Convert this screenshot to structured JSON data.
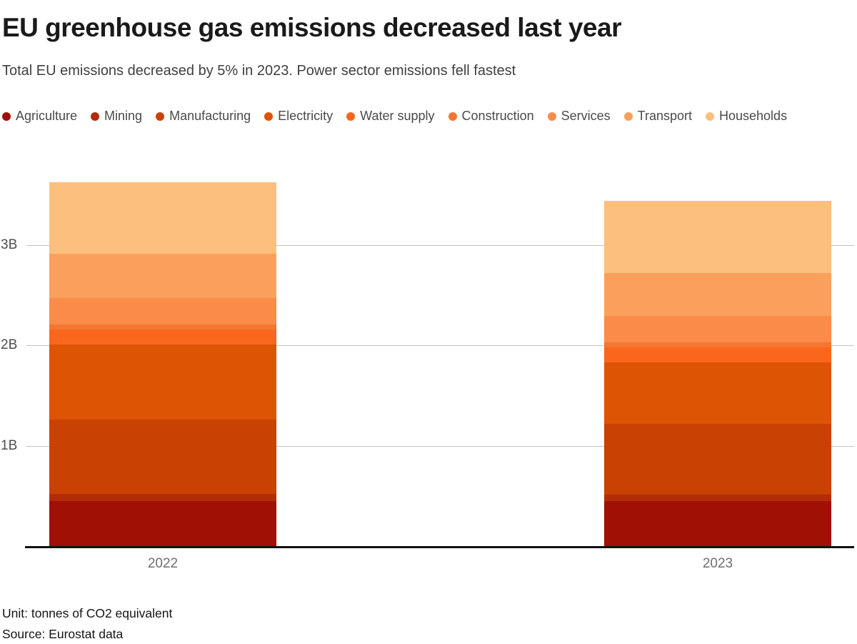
{
  "header": {
    "title": "EU greenhouse gas emissions decreased last year",
    "subtitle": "Total EU emissions decreased by 5% in 2023. Power sector emissions fell fastest"
  },
  "chart_data": {
    "type": "bar",
    "stacked": true,
    "unit": "billion tonnes of CO2 equivalent",
    "categories": [
      "2022",
      "2023"
    ],
    "series": [
      {
        "name": "Agriculture",
        "color": "#a01005",
        "values": [
          0.45,
          0.45
        ]
      },
      {
        "name": "Mining",
        "color": "#b32d08",
        "values": [
          0.07,
          0.06
        ]
      },
      {
        "name": "Manufacturing",
        "color": "#c94103",
        "values": [
          0.74,
          0.71
        ]
      },
      {
        "name": "Electricity",
        "color": "#dd5405",
        "values": [
          0.75,
          0.61
        ]
      },
      {
        "name": "Water supply",
        "color": "#fa671c",
        "values": [
          0.15,
          0.15
        ]
      },
      {
        "name": "Construction",
        "color": "#f4762f",
        "values": [
          0.05,
          0.05
        ]
      },
      {
        "name": "Services",
        "color": "#fa8b49",
        "values": [
          0.26,
          0.26
        ]
      },
      {
        "name": "Transport",
        "color": "#fba05c",
        "values": [
          0.44,
          0.43
        ]
      },
      {
        "name": "Households",
        "color": "#fcbf7d",
        "values": [
          0.71,
          0.72
        ]
      }
    ],
    "totals": [
      3.62,
      3.44
    ],
    "yticks": [
      {
        "value": 1,
        "label": "1B"
      },
      {
        "value": 2,
        "label": "2B"
      },
      {
        "value": 3,
        "label": "3B"
      }
    ],
    "ylim": [
      0,
      3.87
    ],
    "grid": true,
    "legend_position": "top",
    "xlabel": "",
    "ylabel": ""
  },
  "footer": {
    "unit": "Unit: tonnes of CO2 equivalent",
    "source": "Source: Eurostat data"
  }
}
